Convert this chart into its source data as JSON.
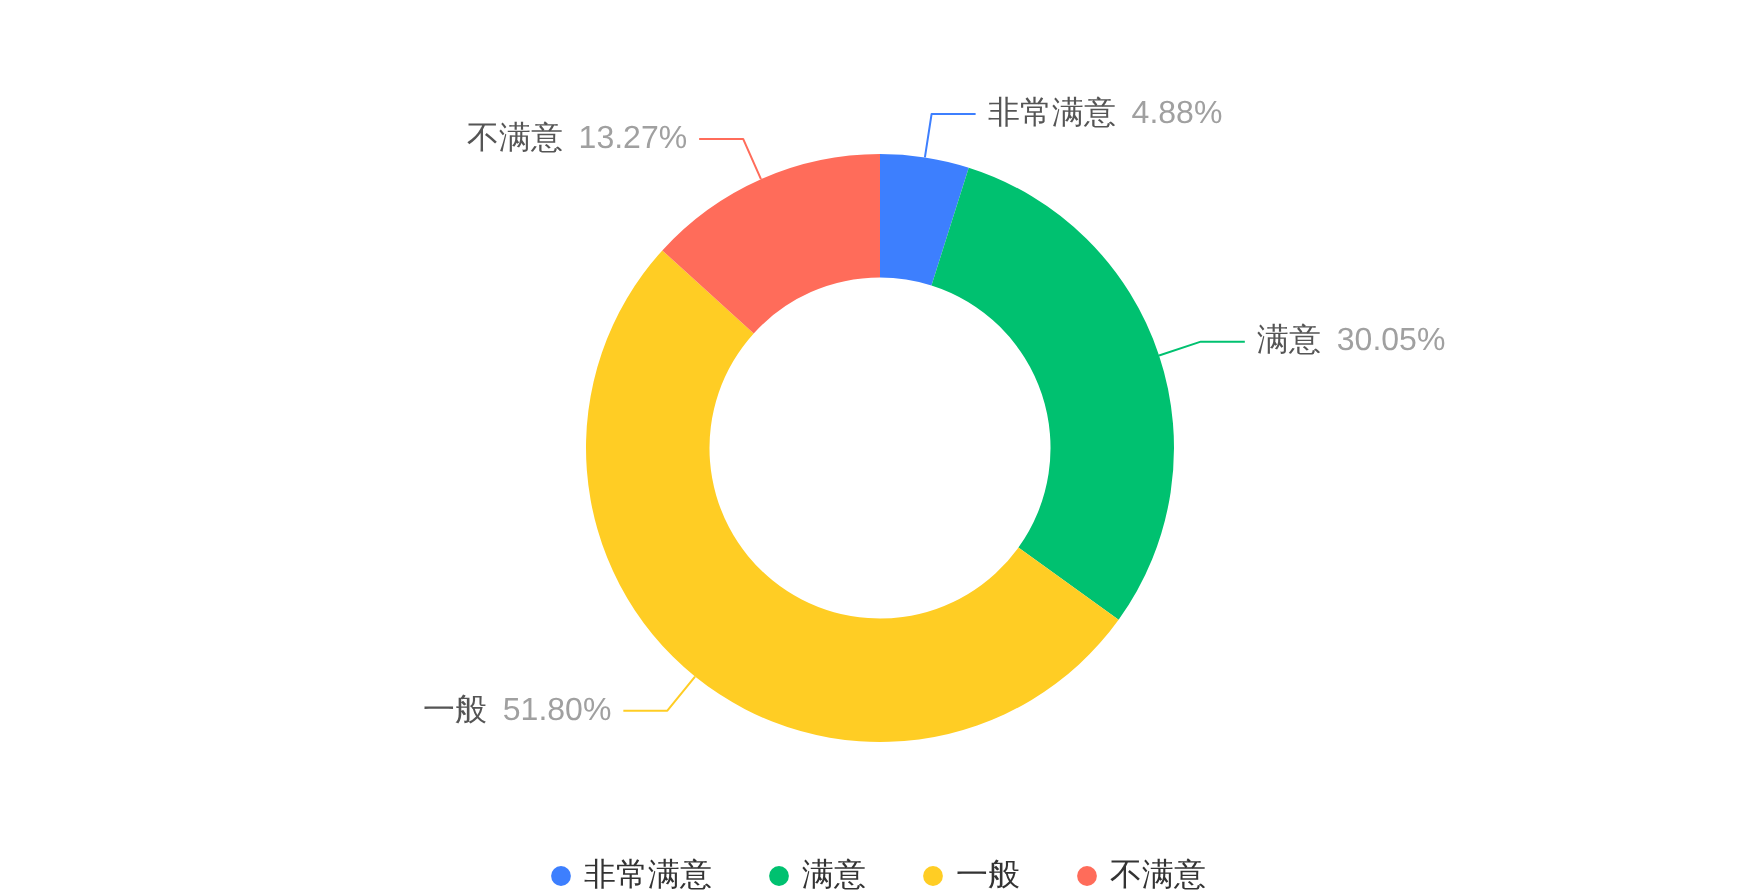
{
  "chart_data": {
    "type": "donut",
    "categories": [
      "非常满意",
      "满意",
      "一般",
      "不满意"
    ],
    "values": [
      4.88,
      30.05,
      51.8,
      13.27
    ],
    "colors": [
      "#3d7ffe",
      "#00c170",
      "#ffcd24",
      "#ff6c5a"
    ],
    "value_labels": [
      "4.88%",
      "30.05%",
      "51.80%",
      "13.27%"
    ],
    "legend": "bottom"
  }
}
